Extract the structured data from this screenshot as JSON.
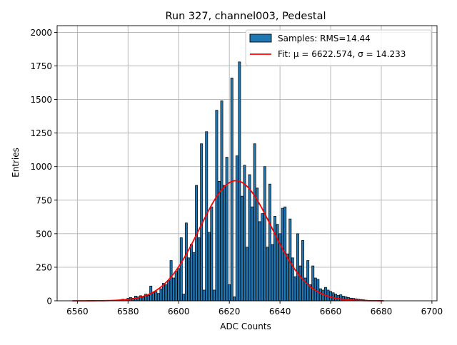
{
  "chart_data": {
    "type": "bar",
    "title": "Run 327, channel003, Pedestal",
    "xlabel": "ADC Counts",
    "ylabel": "Entries",
    "xlim": [
      6552,
      6702
    ],
    "ylim": [
      0,
      2050
    ],
    "xticks": [
      6560,
      6580,
      6600,
      6620,
      6640,
      6660,
      6680,
      6700
    ],
    "yticks": [
      0,
      250,
      500,
      750,
      1000,
      1250,
      1500,
      1750,
      2000
    ],
    "grid": true,
    "legend_position": "top-right",
    "colors": {
      "bar_fill": "#1f77b4",
      "bar_edge": "#000000",
      "fit_line": "#ff0000",
      "grid": "#b0b0b0"
    },
    "series": [
      {
        "name": "Samples: RMS=14.44",
        "kind": "histogram",
        "bin_width": 1,
        "x": [
          6575,
          6576,
          6577,
          6578,
          6579,
          6580,
          6581,
          6582,
          6583,
          6584,
          6585,
          6586,
          6587,
          6588,
          6589,
          6590,
          6591,
          6592,
          6593,
          6594,
          6595,
          6596,
          6597,
          6598,
          6599,
          6600,
          6601,
          6602,
          6603,
          6604,
          6605,
          6606,
          6607,
          6608,
          6609,
          6610,
          6611,
          6612,
          6613,
          6614,
          6615,
          6616,
          6617,
          6618,
          6619,
          6620,
          6621,
          6622,
          6623,
          6624,
          6625,
          6626,
          6627,
          6628,
          6629,
          6630,
          6631,
          6632,
          6633,
          6634,
          6635,
          6636,
          6637,
          6638,
          6639,
          6640,
          6641,
          6642,
          6643,
          6644,
          6645,
          6646,
          6647,
          6648,
          6649,
          6650,
          6651,
          6652,
          6653,
          6654,
          6655,
          6656,
          6657,
          6658,
          6659,
          6660,
          6661,
          6662,
          6663,
          6664,
          6665,
          6666,
          6667,
          6668,
          6669,
          6670,
          6671,
          6672,
          6673,
          6674
        ],
        "values": [
          3,
          5,
          8,
          12,
          10,
          18,
          25,
          20,
          35,
          30,
          38,
          28,
          50,
          40,
          110,
          60,
          70,
          55,
          90,
          130,
          120,
          150,
          300,
          170,
          220,
          240,
          470,
          50,
          580,
          320,
          420,
          360,
          860,
          470,
          1170,
          80,
          1260,
          510,
          700,
          80,
          1420,
          890,
          1490,
          860,
          1070,
          120,
          1660,
          30,
          1080,
          1780,
          780,
          1010,
          400,
          940,
          700,
          1170,
          840,
          590,
          650,
          1000,
          400,
          870,
          420,
          630,
          570,
          500,
          690,
          700,
          350,
          610,
          320,
          180,
          500,
          260,
          450,
          170,
          300,
          120,
          260,
          170,
          160,
          90,
          80,
          100,
          80,
          70,
          60,
          50,
          40,
          45,
          35,
          30,
          25,
          20,
          18,
          15,
          12,
          10,
          8,
          5
        ]
      },
      {
        "name": "Fit: μ = 6622.574, σ = 14.233",
        "kind": "gaussian_fit",
        "mu": 6622.574,
        "sigma": 14.233,
        "amplitude": 895,
        "x_range": [
          6558,
          6681
        ]
      }
    ]
  }
}
